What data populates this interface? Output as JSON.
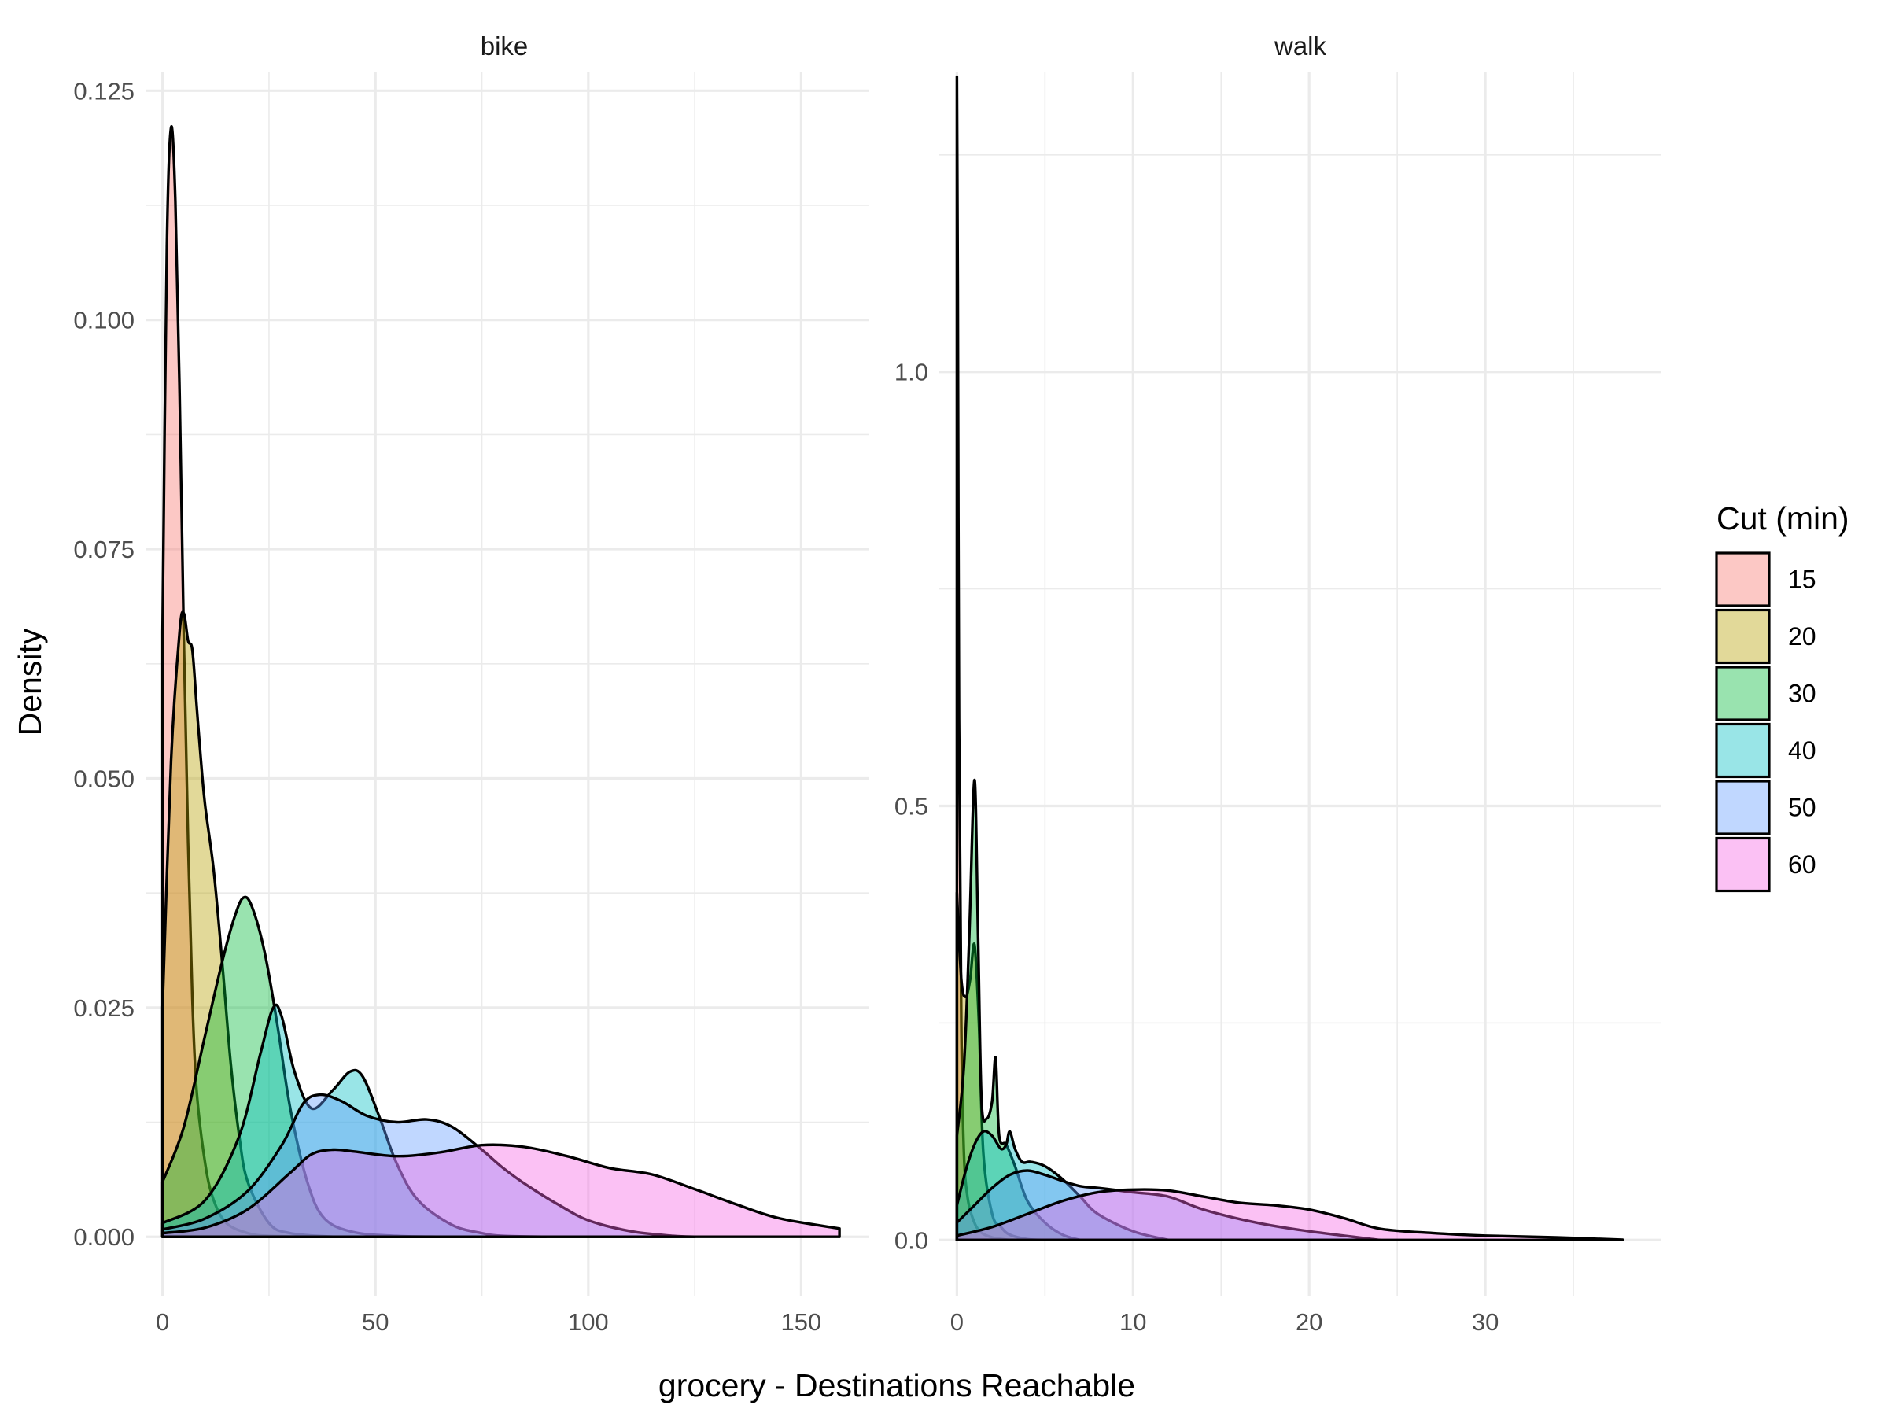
{
  "chart_data": {
    "type": "area",
    "subtype": "density",
    "xlabel": "grocery - Destinations Reachable",
    "ylabel": "Density",
    "legend": {
      "title": "Cut (min)",
      "position": "right",
      "entries": [
        {
          "label": "15",
          "color": "#F8766D"
        },
        {
          "label": "20",
          "color": "#B79F00"
        },
        {
          "label": "30",
          "color": "#00BA38"
        },
        {
          "label": "40",
          "color": "#00BFC4"
        },
        {
          "label": "50",
          "color": "#619CFF"
        },
        {
          "label": "60",
          "color": "#F564E3"
        }
      ]
    },
    "fill_alpha": 0.4,
    "grid": true,
    "panels": [
      {
        "strip": "bike",
        "xlim": [
          -4,
          166
        ],
        "ylim": [
          -0.0065,
          0.127
        ],
        "xticks": [
          0,
          50,
          100,
          150
        ],
        "xtick_labels": [
          "0",
          "50",
          "100",
          "150"
        ],
        "yticks": [
          0,
          0.025,
          0.05,
          0.075,
          0.1,
          0.125
        ],
        "ytick_labels": [
          "0.000",
          "0.025",
          "0.050",
          "0.075",
          "0.100",
          "0.125"
        ],
        "series": [
          {
            "name": "15",
            "x": [
              0,
              1,
              2,
              3,
              4,
              5,
              6,
              7,
              8,
              10,
              12,
              15,
              20,
              25,
              35
            ],
            "y": [
              0.066,
              0.108,
              0.121,
              0.113,
              0.092,
              0.065,
              0.043,
              0.026,
              0.016,
              0.008,
              0.004,
              0.0015,
              0.0004,
              0.0001,
              0
            ]
          },
          {
            "name": "20",
            "x": [
              0,
              2,
              4,
              5,
              6,
              7,
              8,
              9,
              10,
              12,
              14,
              16,
              18,
              20,
              25,
              30,
              40
            ],
            "y": [
              0.025,
              0.052,
              0.066,
              0.068,
              0.065,
              0.064,
              0.058,
              0.052,
              0.047,
              0.04,
              0.03,
              0.019,
              0.011,
              0.006,
              0.0015,
              0.0004,
              0
            ]
          },
          {
            "name": "30",
            "x": [
              0,
              5,
              10,
              14,
              17,
              19,
              21,
              24,
              27,
              30,
              34,
              38,
              45,
              55,
              65
            ],
            "y": [
              0.006,
              0.012,
              0.022,
              0.03,
              0.035,
              0.037,
              0.036,
              0.031,
              0.023,
              0.014,
              0.006,
              0.002,
              0.0005,
              0.0001,
              0
            ]
          },
          {
            "name": "40",
            "x": [
              0,
              10,
              18,
              23,
              26,
              28,
              31,
              35,
              40,
              44,
              47,
              51,
              55,
              60,
              68,
              75,
              80,
              90
            ],
            "y": [
              0.0015,
              0.004,
              0.011,
              0.02,
              0.025,
              0.024,
              0.018,
              0.014,
              0.016,
              0.018,
              0.0175,
              0.013,
              0.008,
              0.004,
              0.0013,
              0.0004,
              0.0001,
              0
            ]
          },
          {
            "name": "50",
            "x": [
              0,
              10,
              20,
              28,
              33,
              37,
              42,
              48,
              55,
              62,
              68,
              75,
              80,
              86,
              93,
              100,
              110,
              120,
              125
            ],
            "y": [
              0.0008,
              0.002,
              0.005,
              0.01,
              0.0145,
              0.0155,
              0.0148,
              0.0132,
              0.0125,
              0.0128,
              0.012,
              0.0095,
              0.0075,
              0.0055,
              0.0035,
              0.0018,
              0.0006,
              0.0001,
              0
            ]
          },
          {
            "name": "60",
            "x": [
              0,
              10,
              20,
              30,
              35,
              40,
              45,
              55,
              65,
              75,
              85,
              95,
              105,
              115,
              125,
              135,
              145,
              159
            ],
            "y": [
              0.0004,
              0.001,
              0.003,
              0.007,
              0.009,
              0.0095,
              0.0093,
              0.0088,
              0.0092,
              0.01,
              0.0098,
              0.0088,
              0.0075,
              0.0068,
              0.0052,
              0.0035,
              0.002,
              0.0009
            ]
          }
        ]
      },
      {
        "strip": "walk",
        "xlim": [
          -1,
          40
        ],
        "ylim": [
          -0.065,
          1.345
        ],
        "xticks": [
          0,
          10,
          20,
          30
        ],
        "xtick_labels": [
          "0",
          "10",
          "20",
          "30"
        ],
        "yticks": [
          0,
          0.5,
          1.0
        ],
        "ytick_labels": [
          "0.0",
          "0.5",
          "1.0"
        ],
        "series": [
          {
            "name": "15",
            "x": [
              0,
              0.05,
              0.12,
              0.25,
              0.4,
              0.6,
              0.9,
              1.3,
              2.0,
              3.0
            ],
            "y": [
              1.34,
              1.1,
              0.6,
              0.25,
              0.1,
              0.05,
              0.025,
              0.01,
              0.003,
              0
            ]
          },
          {
            "name": "20",
            "x": [
              0,
              0.25,
              0.5,
              0.75,
              1.0,
              1.25,
              1.5,
              2.0,
              2.5,
              3.0,
              4.0,
              5.0
            ],
            "y": [
              0.4,
              0.3,
              0.28,
              0.3,
              0.34,
              0.25,
              0.1,
              0.03,
              0.015,
              0.006,
              0.001,
              0
            ]
          },
          {
            "name": "30",
            "x": [
              0,
              0.4,
              0.7,
              1.0,
              1.2,
              1.4,
              1.7,
              2.0,
              2.2,
              2.4,
              2.8,
              3.3,
              4.0,
              5.0,
              6.0,
              7.0
            ],
            "y": [
              0.12,
              0.2,
              0.35,
              0.53,
              0.35,
              0.16,
              0.14,
              0.16,
              0.21,
              0.12,
              0.11,
              0.085,
              0.045,
              0.02,
              0.006,
              0
            ]
          },
          {
            "name": "40",
            "x": [
              0,
              0.5,
              1.0,
              1.5,
              2.0,
              2.5,
              2.8,
              3.0,
              3.3,
              3.7,
              4.2,
              5.0,
              6.0,
              7.0,
              8.0,
              10.0,
              12.0
            ],
            "y": [
              0.04,
              0.08,
              0.11,
              0.125,
              0.12,
              0.105,
              0.11,
              0.125,
              0.105,
              0.09,
              0.09,
              0.085,
              0.07,
              0.05,
              0.03,
              0.01,
              0
            ]
          },
          {
            "name": "50",
            "x": [
              0,
              1.0,
              2.0,
              3.0,
              4.0,
              5.0,
              6.0,
              7.0,
              8.0,
              10.0,
              12.0,
              14.0,
              17.0,
              20.0,
              24.0
            ],
            "y": [
              0.02,
              0.04,
              0.06,
              0.075,
              0.08,
              0.075,
              0.068,
              0.062,
              0.06,
              0.055,
              0.05,
              0.035,
              0.02,
              0.01,
              0
            ]
          },
          {
            "name": "60",
            "x": [
              0,
              2.0,
              4.0,
              6.0,
              8.0,
              10.0,
              12.0,
              14.0,
              16.0,
              18.0,
              20.0,
              22.0,
              24.0,
              27.0,
              30.0,
              34.0,
              37.8
            ],
            "y": [
              0.005,
              0.015,
              0.03,
              0.045,
              0.055,
              0.058,
              0.057,
              0.05,
              0.043,
              0.04,
              0.035,
              0.025,
              0.013,
              0.008,
              0.005,
              0.003,
              0.0002
            ]
          }
        ]
      }
    ]
  }
}
